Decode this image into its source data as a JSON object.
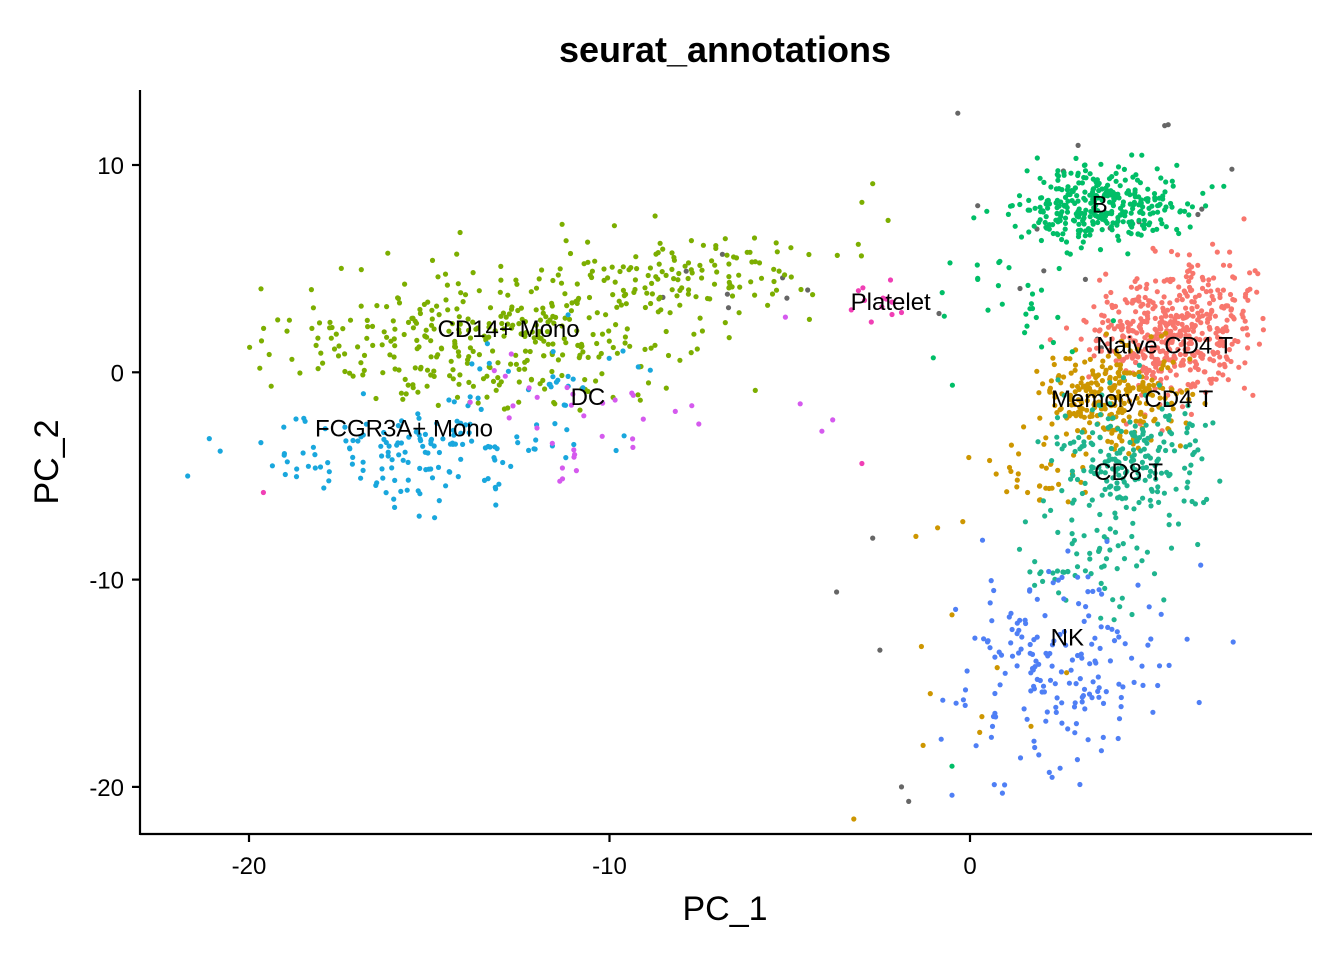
{
  "chart_data": {
    "type": "scatter",
    "title": "seurat_annotations",
    "xlabel": "PC_1",
    "ylabel": "PC_2",
    "xlim": [
      -23,
      8.5
    ],
    "ylim": [
      -22.5,
      13.5
    ],
    "xticks": [
      -20,
      -10,
      0
    ],
    "yticks": [
      10,
      0,
      -10,
      -20
    ],
    "grid": false,
    "legend": "none",
    "series": [
      {
        "name": "Naive CD4 T",
        "color": "#F8766D",
        "label_at": [
          5.4,
          1.3
        ],
        "clusters": [
          {
            "center": [
              5.6,
              1.8
            ],
            "spread": [
              1.1,
              1.5
            ],
            "n": 420
          },
          {
            "center": [
              6.6,
              3.6
            ],
            "spread": [
              0.8,
              1.1
            ],
            "n": 60
          }
        ]
      },
      {
        "name": "Memory CD4 T",
        "color": "#CD9600",
        "label_at": [
          4.5,
          -1.3
        ],
        "clusters": [
          {
            "center": [
              3.9,
              -1.2
            ],
            "spread": [
              1.0,
              1.2
            ],
            "n": 260
          },
          {
            "center": [
              1.9,
              -5.0
            ],
            "spread": [
              0.7,
              0.8
            ],
            "n": 30
          },
          {
            "center": [
              0.3,
              -15.0
            ],
            "spread": [
              1.5,
              3.5
            ],
            "n": 8
          }
        ]
      },
      {
        "name": "CD14+ Mono",
        "color": "#7CAE00",
        "label_at": [
          -12.8,
          2.1
        ],
        "clusters": [
          {
            "center": [
              -13.5,
              1.5
            ],
            "spread": [
              2.6,
              1.6
            ],
            "n": 320
          },
          {
            "center": [
              -8.2,
              4.6
            ],
            "spread": [
              2.0,
              1.2
            ],
            "n": 150
          }
        ]
      },
      {
        "name": "B",
        "color": "#00BE67",
        "label_at": [
          3.6,
          8.1
        ],
        "clusters": [
          {
            "center": [
              3.7,
              8.0
            ],
            "spread": [
              1.1,
              0.9
            ],
            "n": 330
          },
          {
            "center": [
              1.2,
              3.6
            ],
            "spread": [
              1.3,
              1.6
            ],
            "n": 30
          }
        ]
      },
      {
        "name": "CD8 T",
        "color": "#00BFC4",
        "color_override": "#1FB48E",
        "label_at": [
          4.4,
          -4.8
        ],
        "clusters": [
          {
            "center": [
              4.4,
              -4.2
            ],
            "spread": [
              1.1,
              1.7
            ],
            "n": 220
          },
          {
            "center": [
              3.4,
              -9.0
            ],
            "spread": [
              0.9,
              1.2
            ],
            "n": 60
          }
        ]
      },
      {
        "name": "FCGR3A+ Mono",
        "color": "#00A9FF",
        "color_override": "#19A7DD",
        "label_at": [
          -15.7,
          -2.7
        ],
        "clusters": [
          {
            "center": [
              -15.3,
              -3.7
            ],
            "spread": [
              1.9,
              1.2
            ],
            "n": 150
          },
          {
            "center": [
              -11.3,
              -0.2
            ],
            "spread": [
              1.2,
              1.0
            ],
            "n": 25
          }
        ]
      },
      {
        "name": "NK",
        "color": "#619CFF",
        "color_override": "#4F7FF5",
        "label_at": [
          2.7,
          -12.8
        ],
        "clusters": [
          {
            "center": [
              2.5,
              -14.0
            ],
            "spread": [
              1.4,
              2.4
            ],
            "n": 180
          }
        ]
      },
      {
        "name": "DC",
        "color": "#C77CFF",
        "color_override": "#D55AEE",
        "label_at": [
          -10.6,
          -1.2
        ],
        "clusters": [
          {
            "center": [
              -11.2,
              -2.6
            ],
            "spread": [
              1.5,
              1.5
            ],
            "n": 32
          },
          {
            "center": [
              -4.5,
              -2.0
            ],
            "spread": [
              0.6,
              2.5
            ],
            "n": 4
          }
        ]
      },
      {
        "name": "Platelet",
        "color": "#FF61CC",
        "color_override": "#F03FB5",
        "label_at": [
          -2.2,
          3.4
        ],
        "clusters": [
          {
            "center": [
              -2.1,
              3.5
            ],
            "spread": [
              0.9,
              1.0
            ],
            "n": 12
          }
        ]
      },
      {
        "name": "(unlabeled)",
        "color": "#666666",
        "clusters": [
          {
            "center": [
              3.5,
              6.5
            ],
            "spread": [
              2.6,
              3.5
            ],
            "n": 22
          },
          {
            "center": [
              -6.0,
              4.3
            ],
            "spread": [
              1.8,
              1.2
            ],
            "n": 8
          }
        ]
      }
    ],
    "extra_points": {
      "(unlabeled)": [
        [
          5.4,
          11.9
        ],
        [
          -2.7,
          -8.0
        ],
        [
          -3.7,
          -10.6
        ],
        [
          -2.5,
          -13.4
        ],
        [
          -1.7,
          -20.7
        ],
        [
          -1.9,
          -20.0
        ]
      ],
      "FCGR3A+ Mono": [
        [
          -21.7,
          -5.0
        ],
        [
          -21.1,
          -3.2
        ],
        [
          -20.8,
          -3.8
        ]
      ],
      "Platelet": [
        [
          -19.6,
          -5.8
        ],
        [
          -3.0,
          -4.4
        ]
      ],
      "CD14+ Mono": [
        [
          -19.7,
          0.2
        ],
        [
          -2.7,
          9.1
        ],
        [
          -3.0,
          8.2
        ]
      ],
      "Naive CD4 T": [
        [
          7.6,
          7.4
        ],
        [
          7.2,
          5.8
        ]
      ],
      "B": [
        [
          -0.5,
          -19.0
        ],
        [
          0.5,
          3.0
        ]
      ],
      "NK": [
        [
          -0.5,
          -20.4
        ],
        [
          -0.8,
          -17.7
        ],
        [
          0.9,
          -20.3
        ],
        [
          2.2,
          -19.3
        ],
        [
          1.4,
          -18.6
        ],
        [
          6.4,
          -9.3
        ]
      ],
      "Memory CD4 T": [
        [
          -1.3,
          -18.0
        ],
        [
          -1.1,
          -15.5
        ],
        [
          -0.9,
          -7.5
        ],
        [
          -0.2,
          -7.2
        ],
        [
          -0.5,
          -11.7
        ]
      ]
    }
  }
}
